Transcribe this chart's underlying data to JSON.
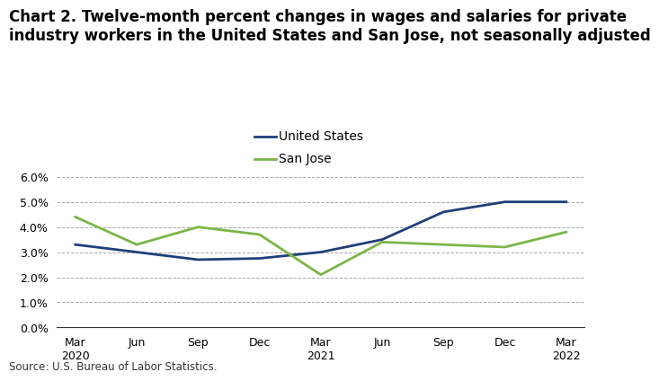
{
  "title": "Chart 2. Twelve-month percent changes in wages and salaries for private\nindustry workers in the United States and San Jose, not seasonally adjusted",
  "x_labels": [
    "Mar\n2020",
    "Jun",
    "Sep",
    "Dec",
    "Mar\n2021",
    "Jun",
    "Sep",
    "Dec",
    "Mar\n2022"
  ],
  "us_values": [
    3.3,
    3.0,
    2.7,
    2.75,
    3.0,
    3.5,
    4.6,
    5.0,
    5.0
  ],
  "sj_values": [
    4.4,
    3.3,
    4.0,
    3.7,
    2.1,
    3.4,
    3.3,
    3.2,
    3.8
  ],
  "us_color": "#1f3f7a",
  "sj_color": "#7ab648",
  "ylim": [
    0.0,
    6.5
  ],
  "yticks": [
    0.0,
    1.0,
    2.0,
    3.0,
    4.0,
    5.0,
    6.0
  ],
  "ytick_labels": [
    "0.0%",
    "1.0%",
    "2.0%",
    "3.0%",
    "4.0%",
    "5.0%",
    "6.0%"
  ],
  "us_label": "United States",
  "sj_label": "San Jose",
  "source": "Source: U.S. Bureau of Labor Statistics.",
  "background_color": "#ffffff",
  "grid_color": "#aaaaaa",
  "line_width": 2.0,
  "title_fontsize": 12,
  "axis_fontsize": 9,
  "legend_fontsize": 10,
  "source_fontsize": 8.5
}
